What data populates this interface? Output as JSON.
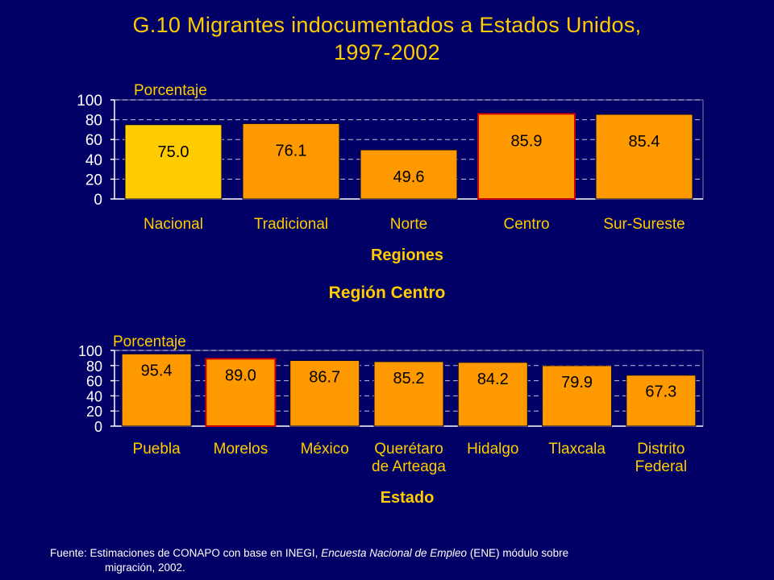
{
  "title_line1": "G.10 Migrantes indocumentados a Estados Unidos,",
  "title_line2": "1997-2002",
  "section_title": "Región Centro",
  "source": {
    "label": "Fuente:",
    "text_before": "Estimaciones de CONAPO con base en INEGI,",
    "italic": "Encuesta Nacional de Empleo",
    "text_after": "(ENE) módulo sobre",
    "line2": "migración, 2002."
  },
  "colors": {
    "background": "#000066",
    "title": "#FFCC00",
    "axis_label": "#FFCC00",
    "bar": "#FF9900",
    "bar_highlight": "#FFCC00",
    "bar_outline_accent": "#CC0000",
    "plot_bg": "#000066",
    "grid": "#FFFFFF",
    "text": "#FFFFFF"
  },
  "chart_data": [
    {
      "type": "bar",
      "ylabel": "Porcentaje",
      "xlabel": "Regiones",
      "ylim": [
        0,
        100
      ],
      "yticks": [
        "0",
        "20",
        "40",
        "60",
        "80",
        "100"
      ],
      "grid": true,
      "categories": [
        [
          "Nacional"
        ],
        [
          "Tradicional"
        ],
        [
          "Norte"
        ],
        [
          "Centro"
        ],
        [
          "Sur-Sureste"
        ]
      ],
      "values": [
        75.0,
        76.1,
        49.6,
        85.9,
        85.4
      ],
      "labels": [
        "75.0",
        "76.1",
        "49.6",
        "85.9",
        "85.4"
      ],
      "highlight": [
        true,
        false,
        false,
        false,
        false
      ],
      "red_outline": [
        false,
        false,
        false,
        true,
        false
      ]
    },
    {
      "type": "bar",
      "ylabel": "Porcentaje",
      "xlabel": "Estado",
      "ylim": [
        0,
        100
      ],
      "yticks": [
        "0",
        "20",
        "40",
        "60",
        "80",
        "100"
      ],
      "grid": true,
      "categories": [
        [
          "Puebla"
        ],
        [
          "Morelos"
        ],
        [
          "México"
        ],
        [
          "Querétaro",
          "de Arteaga"
        ],
        [
          "Hidalgo"
        ],
        [
          "Tlaxcala"
        ],
        [
          "Distrito",
          "Federal"
        ]
      ],
      "values": [
        95.4,
        89.0,
        86.7,
        85.2,
        84.2,
        79.9,
        67.3
      ],
      "labels": [
        "95.4",
        "89.0",
        "86.7",
        "85.2",
        "84.2",
        "79.9",
        "67.3"
      ],
      "highlight": [
        false,
        false,
        false,
        false,
        false,
        false,
        false
      ],
      "red_outline": [
        false,
        true,
        false,
        false,
        false,
        false,
        false
      ]
    }
  ]
}
